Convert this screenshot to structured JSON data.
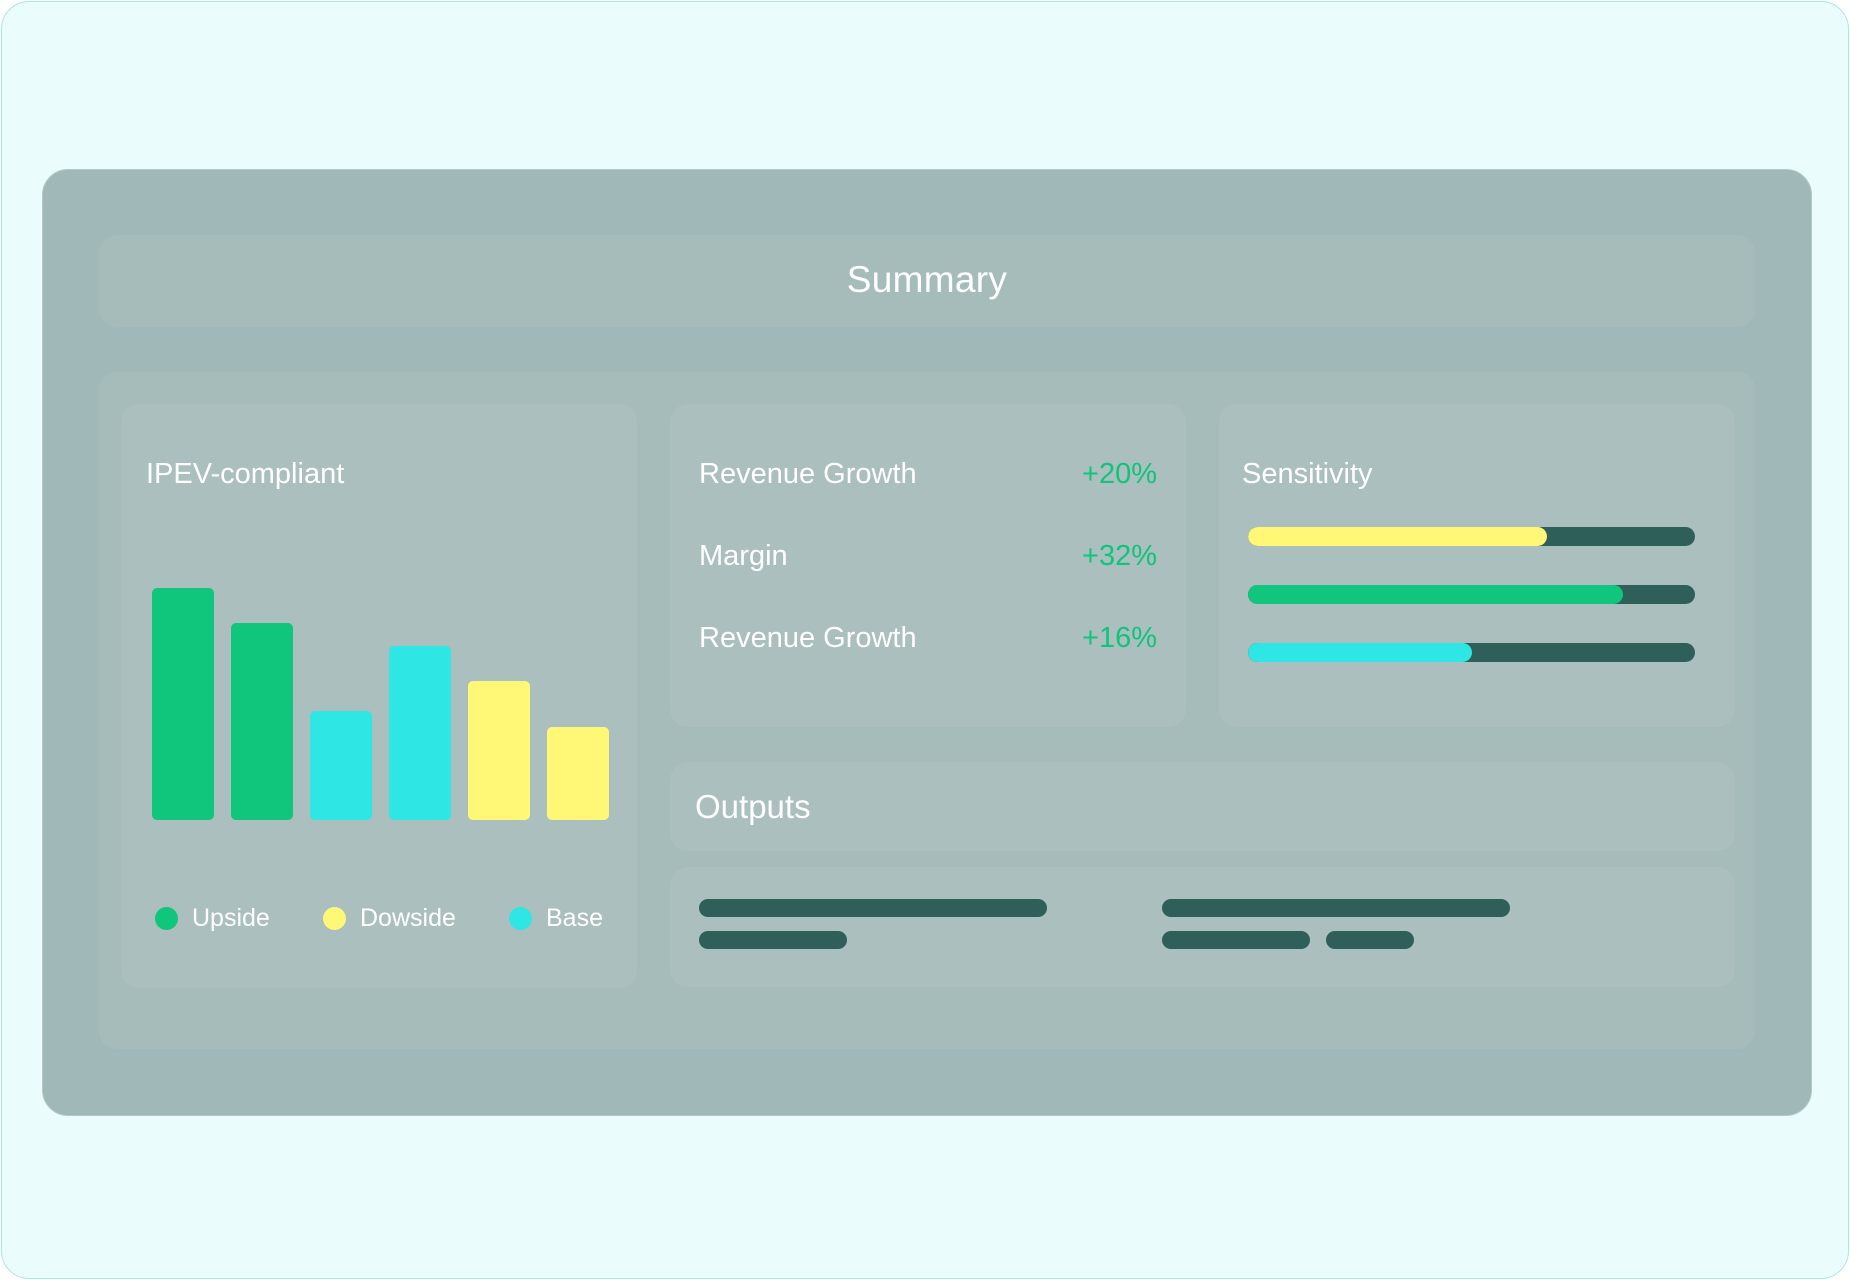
{
  "summary": {
    "title": "Summary"
  },
  "chart_data": {
    "type": "bar",
    "title": "IPEV-compliant",
    "series_colors": {
      "Upside": "#10c67d",
      "Dowside": "#fff877",
      "Base": "#2ee6e4"
    },
    "bars": [
      {
        "series": "Upside",
        "value": 100
      },
      {
        "series": "Upside",
        "value": 85
      },
      {
        "series": "Base",
        "value": 47
      },
      {
        "series": "Base",
        "value": 75
      },
      {
        "series": "Dowside",
        "value": 60
      },
      {
        "series": "Dowside",
        "value": 40
      }
    ],
    "ylim": [
      0,
      100
    ],
    "legend": [
      {
        "label": "Upside",
        "color": "#10c67d"
      },
      {
        "label": "Dowside",
        "color": "#fff877"
      },
      {
        "label": "Base",
        "color": "#2ee6e4"
      }
    ],
    "legend_position": "bottom"
  },
  "metrics": [
    {
      "label": "Revenue Growth",
      "value": "+20%"
    },
    {
      "label": "Margin",
      "value": "+32%"
    },
    {
      "label": "Revenue Growth",
      "value": "+16%"
    }
  ],
  "sensitivity": {
    "title": "Sensitivity",
    "bars": [
      {
        "fraction": 0.67,
        "color": "#fff877"
      },
      {
        "fraction": 0.84,
        "color": "#10c67d"
      },
      {
        "fraction": 0.5,
        "color": "#2ee6e4"
      }
    ]
  },
  "outputs": {
    "title": "Outputs"
  },
  "colors": {
    "accent": "#10c47c",
    "dark": "#2e5f59"
  }
}
